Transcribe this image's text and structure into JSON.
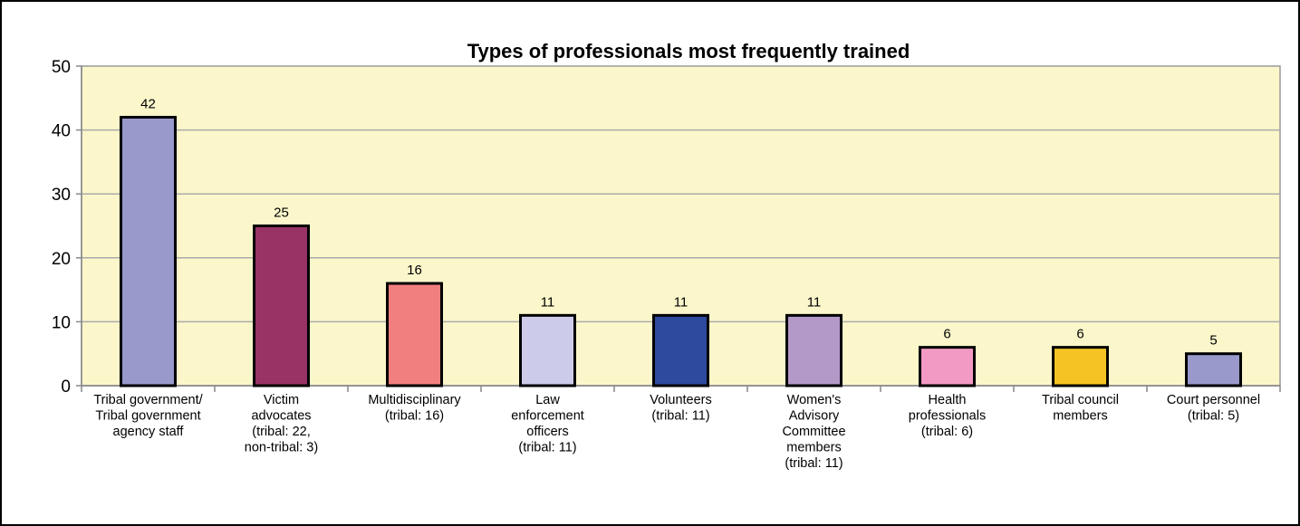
{
  "chart_data": {
    "type": "bar",
    "title": "Types of professionals most frequently trained",
    "categories": [
      [
        "Tribal government/",
        "Tribal government",
        "agency staff"
      ],
      [
        "Victim",
        "advocates",
        "(tribal: 22,",
        "non-tribal: 3)"
      ],
      [
        "Multidisciplinary",
        "(tribal: 16)"
      ],
      [
        "Law",
        "enforcement",
        "officers",
        "(tribal: 11)"
      ],
      [
        "Volunteers",
        "(tribal: 11)"
      ],
      [
        "Women's",
        "Advisory",
        "Committee",
        "members",
        "(tribal: 11)"
      ],
      [
        "Health",
        "professionals",
        "(tribal: 6)"
      ],
      [
        "Tribal council",
        "members"
      ],
      [
        "Court personnel",
        "(tribal: 5)"
      ]
    ],
    "values": [
      42,
      25,
      16,
      11,
      11,
      11,
      6,
      6,
      5
    ],
    "colors": [
      "#9999cc",
      "#993366",
      "#f27f7f",
      "#ccccea",
      "#2e4a9e",
      "#b399c8",
      "#f29ac4",
      "#f5c424",
      "#9999cc"
    ],
    "ylim": [
      0,
      50
    ],
    "yticks": [
      0,
      10,
      20,
      30,
      40,
      50
    ],
    "grid": true
  }
}
